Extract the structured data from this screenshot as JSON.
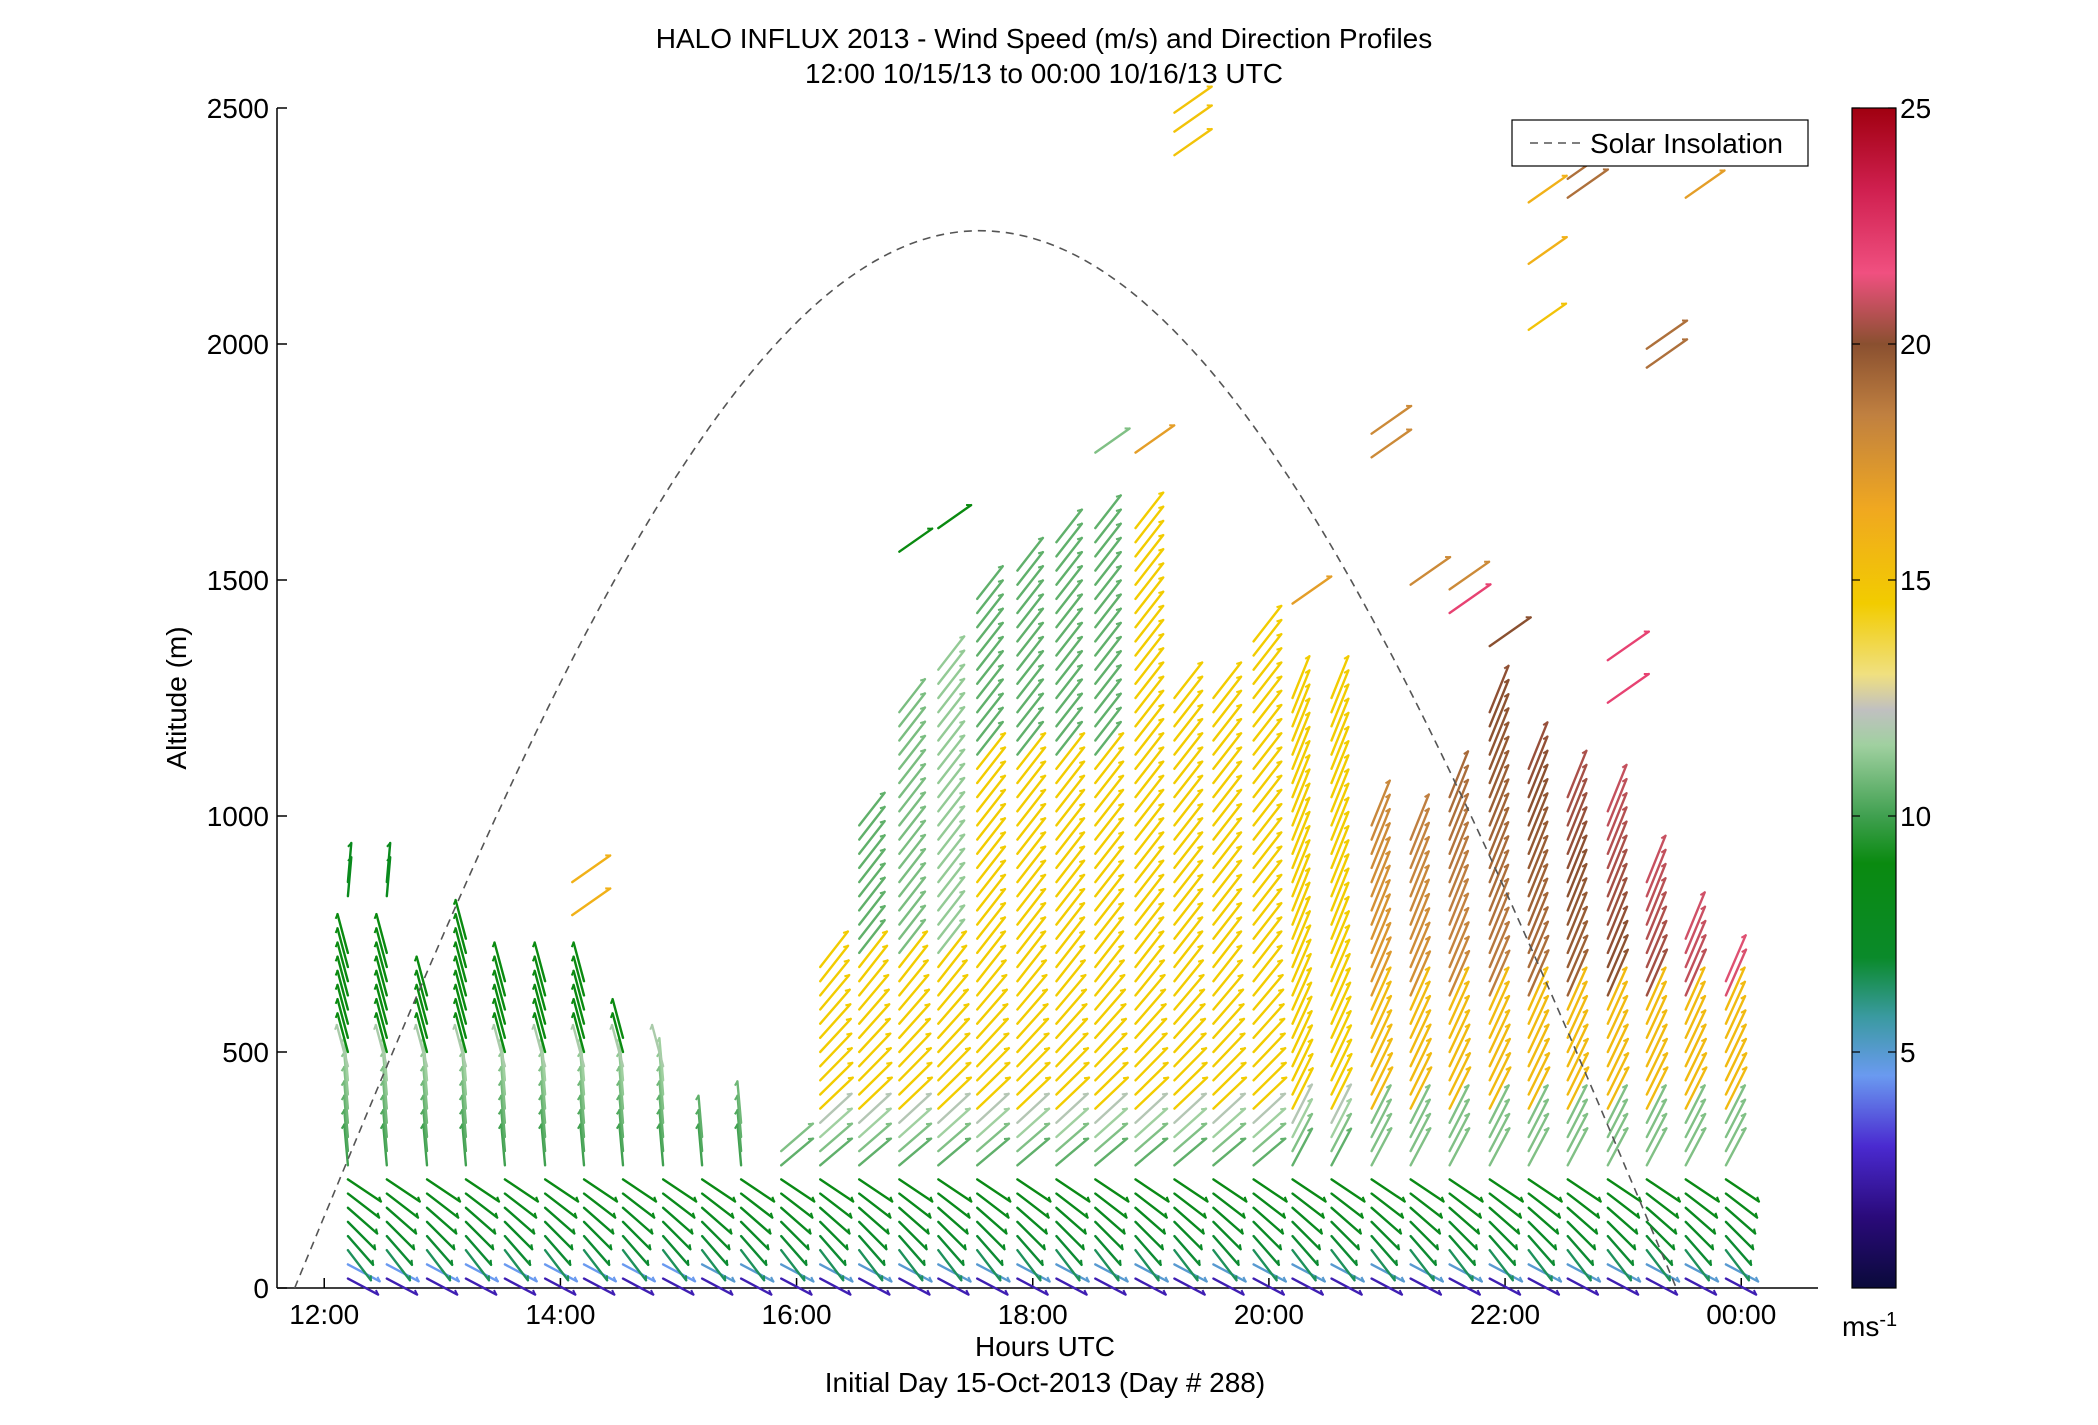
{
  "chart_data": {
    "type": "wind-barb-profile",
    "title": "HALO INFLUX 2013 - Wind Speed (m/s) and Direction Profiles",
    "subtitle": "12:00 10/15/13 to 00:00 10/16/13  UTC",
    "xlabel": "Hours UTC",
    "xlabel2": "Initial Day 15-Oct-2013 (Day # 288)",
    "ylabel": "Altitude (m)",
    "xlim": [
      11.6,
      24.65
    ],
    "ylim": [
      0,
      2500
    ],
    "x_ticks": [
      {
        "value": 12,
        "label": "12:00"
      },
      {
        "value": 14,
        "label": "14:00"
      },
      {
        "value": 16,
        "label": "16:00"
      },
      {
        "value": 18,
        "label": "18:00"
      },
      {
        "value": 20,
        "label": "20:00"
      },
      {
        "value": 22,
        "label": "22:00"
      },
      {
        "value": 24,
        "label": "00:00"
      }
    ],
    "y_ticks": [
      0,
      500,
      1000,
      1500,
      2000,
      2500
    ],
    "legend": {
      "entry": "Solar Insolation",
      "placement": "top-right",
      "style": "dashed-grey"
    },
    "solar_insolation": {
      "rise_hour": 11.75,
      "peak_hour": 17.55,
      "set_hour": 23.45,
      "peak_altitude": 2240
    },
    "colorbar": {
      "min": 0,
      "max": 25,
      "ticks": [
        5,
        10,
        15,
        20,
        25
      ],
      "unit_label": "ms",
      "unit_exp": "-1"
    },
    "profile_hours": [
      12.2,
      12.53,
      12.87,
      13.2,
      13.53,
      13.87,
      14.2,
      14.53,
      14.87,
      15.2,
      15.53,
      15.87,
      16.2,
      16.53,
      16.87,
      17.2,
      17.53,
      17.87,
      18.2,
      18.53,
      18.87,
      19.2,
      19.53,
      19.87,
      20.2,
      20.53,
      20.87,
      21.2,
      21.53,
      21.87,
      22.2,
      22.53,
      22.87,
      23.2,
      23.53,
      23.87
    ],
    "profile_top_altitudes": [
      720,
      720,
      640,
      740,
      670,
      670,
      670,
      540,
      480,
      330,
      350,
      290,
      680,
      1000,
      1240,
      1320,
      1460,
      1540,
      1600,
      1620,
      1620,
      1260,
      1260,
      1380,
      1260,
      1260,
      980,
      960,
      1060,
      1220,
      1120,
      1060,
      1020,
      880,
      760,
      670
    ],
    "sample_spacing_m": 30,
    "isolated_barbs": [
      {
        "hour": 12.2,
        "altitude": 860,
        "speed": 8
      },
      {
        "hour": 12.2,
        "altitude": 830,
        "speed": 8
      },
      {
        "hour": 12.53,
        "altitude": 860,
        "speed": 8
      },
      {
        "hour": 12.53,
        "altitude": 830,
        "speed": 8
      },
      {
        "hour": 14.1,
        "altitude": 860,
        "speed": 16
      },
      {
        "hour": 14.1,
        "altitude": 790,
        "speed": 16
      },
      {
        "hour": 16.87,
        "altitude": 1560,
        "speed": 9
      },
      {
        "hour": 17.2,
        "altitude": 1610,
        "speed": 9
      },
      {
        "hour": 18.53,
        "altitude": 1770,
        "speed": 11
      },
      {
        "hour": 18.87,
        "altitude": 1770,
        "speed": 17
      },
      {
        "hour": 19.2,
        "altitude": 2490,
        "speed": 15
      },
      {
        "hour": 19.2,
        "altitude": 2450,
        "speed": 15
      },
      {
        "hour": 19.2,
        "altitude": 2400,
        "speed": 15
      },
      {
        "hour": 20.2,
        "altitude": 1450,
        "speed": 17
      },
      {
        "hour": 20.87,
        "altitude": 1810,
        "speed": 18
      },
      {
        "hour": 20.87,
        "altitude": 1760,
        "speed": 18
      },
      {
        "hour": 21.2,
        "altitude": 1490,
        "speed": 18
      },
      {
        "hour": 21.53,
        "altitude": 1480,
        "speed": 18
      },
      {
        "hour": 21.53,
        "altitude": 1430,
        "speed": 22
      },
      {
        "hour": 21.87,
        "altitude": 1360,
        "speed": 20
      },
      {
        "hour": 22.2,
        "altitude": 2300,
        "speed": 16
      },
      {
        "hour": 22.2,
        "altitude": 2170,
        "speed": 16
      },
      {
        "hour": 22.2,
        "altitude": 2030,
        "speed": 15
      },
      {
        "hour": 22.53,
        "altitude": 2350,
        "speed": 19
      },
      {
        "hour": 22.53,
        "altitude": 2310,
        "speed": 19
      },
      {
        "hour": 23.2,
        "altitude": 1990,
        "speed": 19
      },
      {
        "hour": 23.2,
        "altitude": 1950,
        "speed": 19
      },
      {
        "hour": 23.53,
        "altitude": 2310,
        "speed": 17
      },
      {
        "hour": 22.87,
        "altitude": 1330,
        "speed": 22
      },
      {
        "hour": 22.87,
        "altitude": 1240,
        "speed": 22
      }
    ]
  }
}
